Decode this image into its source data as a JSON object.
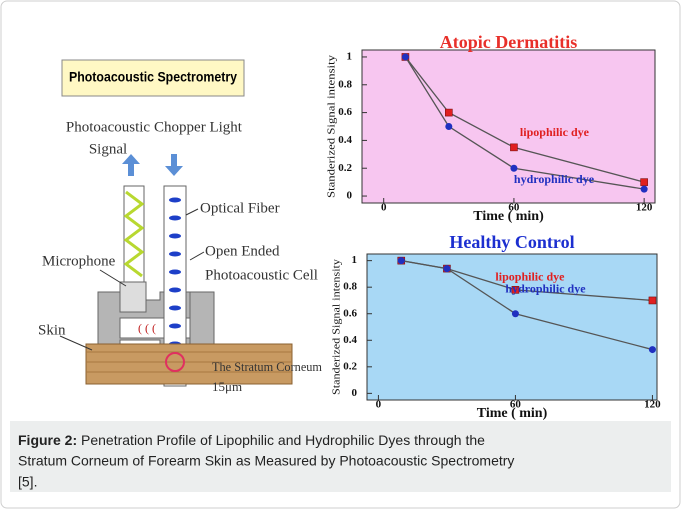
{
  "diagram": {
    "title": "Photoacoustic Spectrometry",
    "signal_label": [
      "Photoacoustic",
      "Signal"
    ],
    "light_label": "Chopper Light",
    "fiber_label": "Optical Fiber",
    "cell_label": [
      "Open Ended",
      "Photoacoustic Cell"
    ],
    "microphone_label": "Microphone",
    "skin_label": "Skin",
    "stratum_label": [
      "The Stratum Corneum",
      "15μm"
    ]
  },
  "chart_data": [
    {
      "type": "line",
      "title": "Atopic Dermatitis",
      "title_color": "#e8302a",
      "background": "#f7c6f0",
      "x_label": "Time ( min)",
      "y_label": "Standerized Signal intensity",
      "x": [
        10,
        30,
        60,
        120
      ],
      "xlim": [
        -10,
        125
      ],
      "xticks": [
        0,
        60,
        120
      ],
      "ylim": [
        -0.05,
        1.05
      ],
      "yticks": [
        0,
        0.2,
        0.4,
        0.6,
        0.8,
        1
      ],
      "line_color": "#555555",
      "series": [
        {
          "name": "lipophilic dye",
          "color": "#e02020",
          "marker": "square",
          "values": [
            1,
            0.6,
            0.35,
            0.1
          ]
        },
        {
          "name": "hydrophilic dye",
          "color": "#2030c0",
          "marker": "circle",
          "values": [
            1,
            0.5,
            0.2,
            0.05
          ]
        }
      ]
    },
    {
      "type": "line",
      "title": "Healthy Control",
      "title_color": "#1c2fd0",
      "background": "#a8d8f5",
      "x_label": "Time ( min)",
      "y_label": "Standerized Signal intensity",
      "x": [
        10,
        30,
        60,
        120
      ],
      "xlim": [
        -5,
        122
      ],
      "xticks": [
        0,
        60,
        120
      ],
      "ylim": [
        -0.05,
        1.05
      ],
      "yticks": [
        0,
        0.2,
        0.4,
        0.6,
        0.8,
        1
      ],
      "line_color": "#555555",
      "series": [
        {
          "name": "lipophilic dye",
          "color": "#e02020",
          "marker": "square",
          "values": [
            1,
            0.94,
            0.78,
            0.7
          ]
        },
        {
          "name": "hydrophilic dye",
          "color": "#2030c0",
          "marker": "circle",
          "values": [
            1,
            0.94,
            0.6,
            0.33
          ]
        }
      ]
    }
  ],
  "caption": {
    "label": "Figure 2:",
    "lines": [
      " Penetration Profile of Lipophilic and Hydrophilic Dyes through the",
      "Stratum Corneum of Forearm Skin as Measured by Photoacoustic Spectrometry",
      "[5]."
    ]
  }
}
